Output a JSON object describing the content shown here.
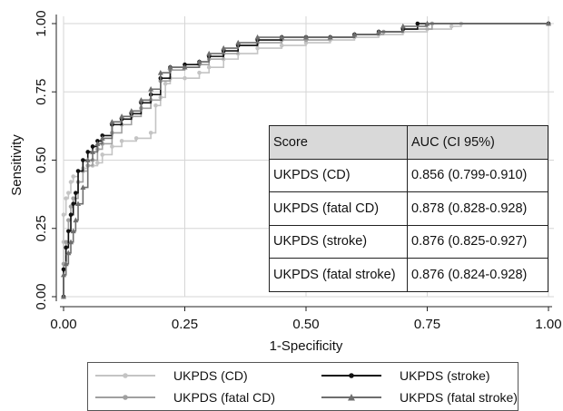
{
  "chart_data": {
    "type": "line",
    "xlabel": "1-Specificity",
    "ylabel": "Sensitivity",
    "xlim": [
      0,
      1
    ],
    "ylim": [
      0,
      1
    ],
    "x_ticks": [
      "0.00",
      "0.25",
      "0.50",
      "0.75",
      "1.00"
    ],
    "y_ticks": [
      "0.00",
      "0.25",
      "0.50",
      "0.75",
      "1.00"
    ],
    "grid": true,
    "legend_position": "bottom",
    "series": [
      {
        "name": "UKPDS (CD)",
        "color": "#c4c4c4",
        "marker": "circle",
        "points": [
          [
            0,
            0
          ],
          [
            0,
            0.1
          ],
          [
            0,
            0.2
          ],
          [
            0,
            0.3
          ],
          [
            0.005,
            0.36
          ],
          [
            0.01,
            0.38
          ],
          [
            0.015,
            0.42
          ],
          [
            0.02,
            0.44
          ],
          [
            0.03,
            0.46
          ],
          [
            0.04,
            0.47
          ],
          [
            0.05,
            0.48
          ],
          [
            0.06,
            0.48
          ],
          [
            0.07,
            0.49
          ],
          [
            0.08,
            0.52
          ],
          [
            0.1,
            0.55
          ],
          [
            0.12,
            0.57
          ],
          [
            0.15,
            0.58
          ],
          [
            0.18,
            0.6
          ],
          [
            0.19,
            0.7
          ],
          [
            0.2,
            0.73
          ],
          [
            0.21,
            0.78
          ],
          [
            0.22,
            0.8
          ],
          [
            0.25,
            0.8
          ],
          [
            0.28,
            0.82
          ],
          [
            0.3,
            0.84
          ],
          [
            0.33,
            0.87
          ],
          [
            0.36,
            0.89
          ],
          [
            0.4,
            0.91
          ],
          [
            0.45,
            0.92
          ],
          [
            0.5,
            0.93
          ],
          [
            0.55,
            0.94
          ],
          [
            0.6,
            0.95
          ],
          [
            0.65,
            0.96
          ],
          [
            0.7,
            0.97
          ],
          [
            0.75,
            0.98
          ],
          [
            0.8,
            0.99
          ],
          [
            0.82,
            1.0
          ],
          [
            1,
            1
          ]
        ]
      },
      {
        "name": "UKPDS (fatal CD)",
        "color": "#a0a0a0",
        "marker": "circle",
        "points": [
          [
            0,
            0
          ],
          [
            0,
            0.12
          ],
          [
            0.005,
            0.2
          ],
          [
            0.01,
            0.28
          ],
          [
            0.015,
            0.33
          ],
          [
            0.02,
            0.36
          ],
          [
            0.03,
            0.42
          ],
          [
            0.04,
            0.46
          ],
          [
            0.05,
            0.48
          ],
          [
            0.06,
            0.5
          ],
          [
            0.07,
            0.54
          ],
          [
            0.08,
            0.56
          ],
          [
            0.1,
            0.6
          ],
          [
            0.12,
            0.63
          ],
          [
            0.14,
            0.66
          ],
          [
            0.16,
            0.69
          ],
          [
            0.18,
            0.72
          ],
          [
            0.2,
            0.79
          ],
          [
            0.22,
            0.83
          ],
          [
            0.25,
            0.84
          ],
          [
            0.28,
            0.85
          ],
          [
            0.3,
            0.87
          ],
          [
            0.33,
            0.89
          ],
          [
            0.36,
            0.92
          ],
          [
            0.4,
            0.93
          ],
          [
            0.45,
            0.94
          ],
          [
            0.5,
            0.94
          ],
          [
            0.55,
            0.95
          ],
          [
            0.6,
            0.96
          ],
          [
            0.66,
            0.97
          ],
          [
            0.7,
            0.98
          ],
          [
            0.76,
            1.0
          ],
          [
            1,
            1
          ]
        ]
      },
      {
        "name": "UKPDS (stroke)",
        "color": "#111111",
        "marker": "circle",
        "points": [
          [
            0,
            0
          ],
          [
            0,
            0.1
          ],
          [
            0.005,
            0.18
          ],
          [
            0.01,
            0.24
          ],
          [
            0.015,
            0.3
          ],
          [
            0.02,
            0.34
          ],
          [
            0.025,
            0.38
          ],
          [
            0.03,
            0.46
          ],
          [
            0.04,
            0.5
          ],
          [
            0.05,
            0.53
          ],
          [
            0.06,
            0.55
          ],
          [
            0.07,
            0.57
          ],
          [
            0.08,
            0.59
          ],
          [
            0.1,
            0.63
          ],
          [
            0.12,
            0.65
          ],
          [
            0.14,
            0.67
          ],
          [
            0.16,
            0.71
          ],
          [
            0.18,
            0.74
          ],
          [
            0.2,
            0.8
          ],
          [
            0.22,
            0.84
          ],
          [
            0.25,
            0.85
          ],
          [
            0.28,
            0.86
          ],
          [
            0.3,
            0.88
          ],
          [
            0.33,
            0.9
          ],
          [
            0.36,
            0.92
          ],
          [
            0.4,
            0.94
          ],
          [
            0.45,
            0.95
          ],
          [
            0.5,
            0.95
          ],
          [
            0.55,
            0.95
          ],
          [
            0.6,
            0.96
          ],
          [
            0.65,
            0.97
          ],
          [
            0.7,
            0.98
          ],
          [
            0.73,
            1.0
          ],
          [
            1,
            1
          ]
        ]
      },
      {
        "name": "UKPDS (fatal stroke)",
        "color": "#6e6e6e",
        "marker": "triangle",
        "points": [
          [
            0,
            0
          ],
          [
            0,
            0.08
          ],
          [
            0.005,
            0.12
          ],
          [
            0.01,
            0.16
          ],
          [
            0.015,
            0.2
          ],
          [
            0.02,
            0.24
          ],
          [
            0.025,
            0.28
          ],
          [
            0.03,
            0.34
          ],
          [
            0.04,
            0.4
          ],
          [
            0.05,
            0.5
          ],
          [
            0.06,
            0.53
          ],
          [
            0.07,
            0.56
          ],
          [
            0.08,
            0.58
          ],
          [
            0.1,
            0.64
          ],
          [
            0.12,
            0.66
          ],
          [
            0.14,
            0.68
          ],
          [
            0.16,
            0.72
          ],
          [
            0.18,
            0.76
          ],
          [
            0.2,
            0.82
          ],
          [
            0.22,
            0.84
          ],
          [
            0.25,
            0.84
          ],
          [
            0.28,
            0.86
          ],
          [
            0.3,
            0.89
          ],
          [
            0.33,
            0.91
          ],
          [
            0.36,
            0.93
          ],
          [
            0.4,
            0.95
          ],
          [
            0.45,
            0.95
          ],
          [
            0.5,
            0.95
          ],
          [
            0.55,
            0.95
          ],
          [
            0.6,
            0.96
          ],
          [
            0.65,
            0.97
          ],
          [
            0.7,
            0.99
          ],
          [
            0.75,
            1.0
          ],
          [
            1,
            1
          ]
        ]
      }
    ]
  },
  "auc_table": {
    "headers": [
      "Score",
      "AUC (CI 95%)"
    ],
    "rows": [
      [
        "UKPDS (CD)",
        "0.856 (0.799-0.910)"
      ],
      [
        "UKPDS (fatal CD)",
        "0.878 (0.828-0.928)"
      ],
      [
        "UKPDS (stroke)",
        "0.876 (0.825-0.927)"
      ],
      [
        "UKPDS (fatal stroke)",
        "0.876 (0.824-0.928)"
      ]
    ]
  },
  "legend": {
    "items": [
      "UKPDS (CD)",
      "UKPDS (stroke)",
      "UKPDS (fatal CD)",
      "UKPDS (fatal stroke)"
    ]
  }
}
